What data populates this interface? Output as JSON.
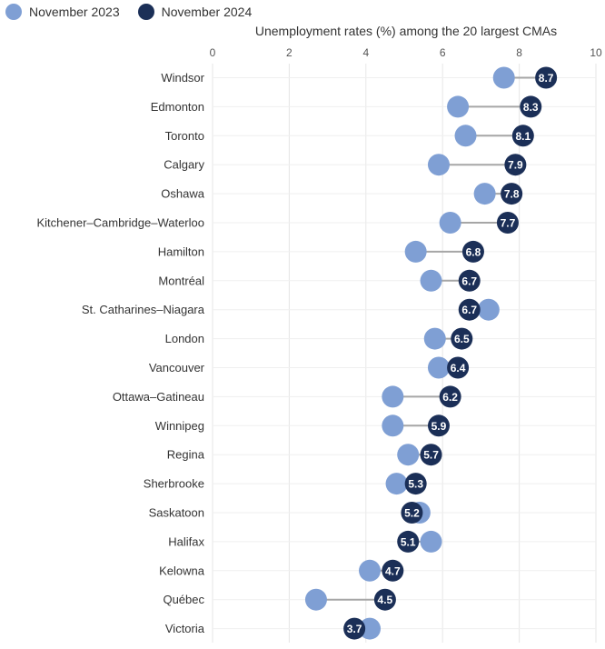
{
  "legend": {
    "items": [
      {
        "label": "November 2023",
        "color": "#7f9fd4"
      },
      {
        "label": "November 2024",
        "color": "#1b2f57"
      }
    ]
  },
  "chart_data": {
    "type": "dumbbell",
    "title": "Unemployment rates (%) among the 20 largest CMAs",
    "xlim": [
      0,
      10
    ],
    "x_ticks": [
      "0",
      "2",
      "4",
      "6",
      "8",
      "10"
    ],
    "grid": true,
    "legend_position": "top-left",
    "series": [
      {
        "name": "November 2023",
        "color": "#7f9fd4"
      },
      {
        "name": "November 2024",
        "color": "#1b2f57"
      }
    ],
    "categories": [
      "Windsor",
      "Edmonton",
      "Toronto",
      "Calgary",
      "Oshawa",
      "Kitchener–Cambridge–Waterloo",
      "Hamilton",
      "Montréal",
      "St. Catharines–Niagara",
      "London",
      "Vancouver",
      "Ottawa–Gatineau",
      "Winnipeg",
      "Regina",
      "Sherbrooke",
      "Saskatoon",
      "Halifax",
      "Kelowna",
      "Québec",
      "Victoria"
    ],
    "nov2023": [
      7.6,
      6.4,
      6.6,
      5.9,
      7.1,
      6.2,
      5.3,
      5.7,
      7.2,
      5.8,
      5.9,
      4.7,
      4.7,
      5.1,
      4.8,
      5.4,
      5.7,
      4.1,
      2.7,
      4.1
    ],
    "nov2024": [
      8.7,
      8.3,
      8.1,
      7.9,
      7.8,
      7.7,
      6.8,
      6.7,
      6.7,
      6.5,
      6.4,
      6.2,
      5.9,
      5.7,
      5.3,
      5.2,
      5.1,
      4.7,
      4.5,
      3.7
    ],
    "nov2024_labels": [
      "8.7",
      "8.3",
      "8.1",
      "7.9",
      "7.8",
      "7.7",
      "6.8",
      "6.7",
      "6.7",
      "6.5",
      "6.4",
      "6.2",
      "5.9",
      "5.7",
      "5.3",
      "5.2",
      "5.1",
      "4.7",
      "4.5",
      "3.7"
    ]
  }
}
